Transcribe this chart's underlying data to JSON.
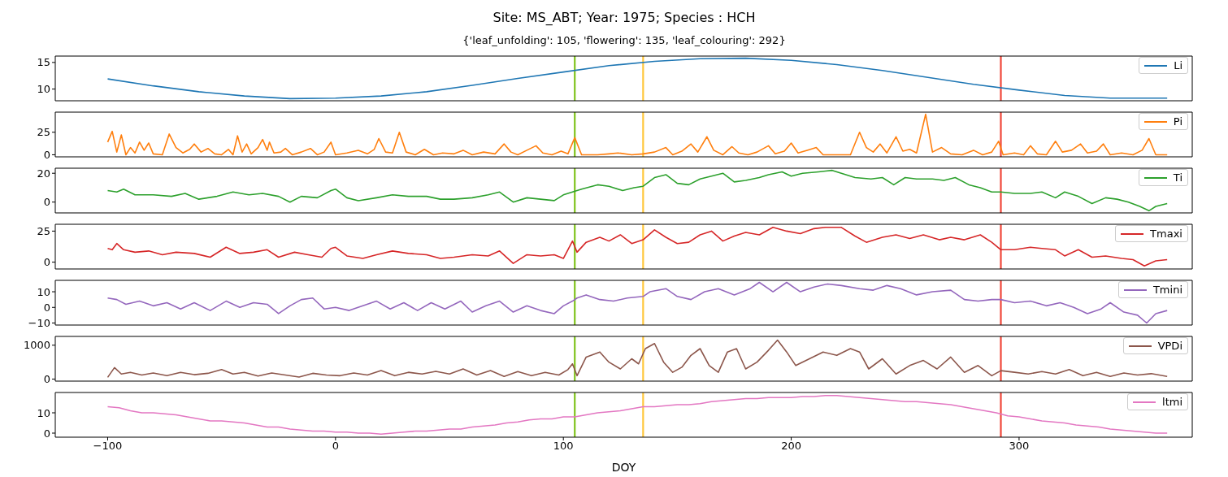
{
  "chart_data": [
    {
      "type": "line",
      "title": "Site: MS_ABT; Year: 1975; Species : HCH",
      "subtitle": "{'leaf_unfolding': 105, 'flowering': 135, 'leaf_colouring': 292}",
      "xlim": [
        -123,
        376
      ],
      "xticks": [
        -100,
        0,
        100,
        200,
        300
      ],
      "ylim": [
        7.8,
        16.2
      ],
      "yticks": [
        10,
        15
      ],
      "tick_labels": "y",
      "legend": "top right",
      "marker": "none",
      "line_style": "solid",
      "x": [
        -100,
        -80,
        -60,
        -40,
        -20,
        0,
        20,
        40,
        60,
        80,
        100,
        120,
        140,
        160,
        180,
        200,
        220,
        240,
        260,
        280,
        300,
        320,
        340,
        365
      ],
      "series": [
        {
          "name": "Li",
          "color": "#1f77b4",
          "values": [
            11.9,
            10.6,
            9.5,
            8.7,
            8.2,
            8.3,
            8.7,
            9.5,
            10.7,
            12.0,
            13.2,
            14.4,
            15.2,
            15.7,
            15.8,
            15.4,
            14.6,
            13.5,
            12.2,
            10.9,
            9.8,
            8.8,
            8.3,
            8.3
          ]
        }
      ],
      "ref_lines": [
        {
          "axis": "x",
          "value": 105,
          "color": "#7fc31c"
        },
        {
          "axis": "x",
          "value": 135,
          "color": "#ffc83d"
        },
        {
          "axis": "x",
          "value": 292,
          "color": "#f0473a"
        }
      ]
    },
    {
      "type": "line",
      "xlim": [
        -123,
        376
      ],
      "xticks": [
        -100,
        0,
        100,
        200,
        300
      ],
      "ylim": [
        -2.3,
        47.3
      ],
      "yticks": [
        0,
        25
      ],
      "tick_labels": "y",
      "legend": "top right",
      "marker": "none",
      "line_style": "solid",
      "x": [
        -100,
        -98,
        -96,
        -94,
        -92,
        -90,
        -88,
        -86,
        -84,
        -82,
        -80,
        -76,
        -73,
        -70,
        -67,
        -64,
        -62,
        -59,
        -56,
        -53,
        -50,
        -47,
        -45,
        -43,
        -41,
        -39,
        -37,
        -34,
        -32,
        -30,
        -29,
        -27,
        -24,
        -22,
        -19,
        -15,
        -11,
        -8,
        -5,
        -2,
        0,
        5,
        10,
        14,
        17,
        19,
        22,
        25,
        28,
        31,
        35,
        39,
        43,
        47,
        52,
        56,
        60,
        65,
        70,
        74,
        77,
        80,
        84,
        88,
        91,
        95,
        99,
        102,
        105,
        108,
        115,
        120,
        124,
        130,
        135,
        140,
        145,
        148,
        152,
        156,
        159,
        163,
        166,
        170,
        174,
        177,
        181,
        185,
        190,
        193,
        197,
        200,
        203,
        207,
        211,
        214,
        218,
        222,
        226,
        230,
        233,
        236,
        239,
        242,
        246,
        249,
        252,
        255,
        259,
        262,
        266,
        270,
        275,
        280,
        284,
        288,
        291,
        293,
        298,
        302,
        305,
        308,
        312,
        316,
        319,
        323,
        327,
        330,
        334,
        337,
        340,
        345,
        350,
        354,
        357,
        360,
        365
      ],
      "series": [
        {
          "name": "Pi",
          "color": "#ff7f0e",
          "values": [
            14,
            26,
            3,
            22,
            0,
            8,
            2,
            14,
            5,
            13,
            1,
            0,
            23,
            8,
            2,
            6,
            12,
            3,
            7,
            1,
            0,
            6,
            0,
            21,
            3,
            12,
            1,
            8,
            17,
            5,
            14,
            2,
            3,
            7,
            0,
            3,
            7,
            0,
            3,
            14,
            0,
            2,
            5,
            1,
            6,
            18,
            3,
            2,
            25,
            3,
            0,
            6,
            0,
            2,
            1,
            5,
            0,
            3,
            1,
            12,
            3,
            0,
            5,
            10,
            2,
            0,
            4,
            1,
            19,
            0,
            0,
            1,
            2,
            0,
            1,
            3,
            8,
            0,
            4,
            12,
            3,
            20,
            5,
            0,
            9,
            2,
            0,
            3,
            10,
            1,
            4,
            13,
            2,
            5,
            8,
            0,
            0,
            0,
            0,
            25,
            8,
            3,
            12,
            2,
            20,
            4,
            6,
            2,
            45,
            3,
            8,
            1,
            0,
            5,
            0,
            3,
            15,
            0,
            2,
            0,
            10,
            1,
            0,
            15,
            3,
            5,
            12,
            2,
            4,
            12,
            0,
            2,
            0,
            5,
            18,
            0,
            0
          ]
        }
      ],
      "ref_lines": [
        {
          "axis": "x",
          "value": 105,
          "color": "#7fc31c"
        },
        {
          "axis": "x",
          "value": 135,
          "color": "#ffc83d"
        },
        {
          "axis": "x",
          "value": 292,
          "color": "#f0473a"
        }
      ]
    },
    {
      "type": "line",
      "xlim": [
        -123,
        376
      ],
      "xticks": [
        -100,
        0,
        100,
        200,
        300
      ],
      "ylim": [
        -7.5,
        23.5
      ],
      "yticks": [
        0,
        20
      ],
      "tick_labels": "y",
      "legend": "top right",
      "marker": "none",
      "line_style": "solid",
      "x": [
        -100,
        -96,
        -93,
        -88,
        -80,
        -72,
        -66,
        -60,
        -52,
        -45,
        -38,
        -32,
        -25,
        -20,
        -15,
        -8,
        -2,
        0,
        5,
        10,
        18,
        25,
        32,
        40,
        46,
        52,
        60,
        67,
        72,
        78,
        84,
        90,
        96,
        100,
        104,
        108,
        115,
        120,
        126,
        131,
        135,
        140,
        145,
        150,
        155,
        160,
        165,
        170,
        175,
        180,
        186,
        190,
        196,
        200,
        205,
        212,
        218,
        222,
        228,
        235,
        240,
        245,
        250,
        255,
        262,
        267,
        272,
        278,
        283,
        288,
        292,
        298,
        305,
        310,
        316,
        320,
        326,
        332,
        338,
        343,
        348,
        353,
        357,
        360,
        365
      ],
      "series": [
        {
          "name": "Ti",
          "color": "#2ca02c",
          "values": [
            8,
            7,
            9,
            5,
            5,
            4,
            6,
            2,
            4,
            7,
            5,
            6,
            4,
            0,
            4,
            3,
            8,
            9,
            3,
            1,
            3,
            5,
            4,
            4,
            2,
            2,
            3,
            5,
            7,
            0,
            3,
            2,
            1,
            5,
            7,
            9,
            12,
            11,
            8,
            10,
            11,
            17,
            19,
            13,
            12,
            16,
            18,
            20,
            14,
            15,
            17,
            19,
            21,
            18,
            20,
            21,
            22,
            20,
            17,
            16,
            17,
            12,
            17,
            16,
            16,
            15,
            17,
            12,
            10,
            7,
            7,
            6,
            6,
            7,
            3,
            7,
            4,
            -1,
            3,
            2,
            0,
            -3,
            -6,
            -3,
            -1
          ]
        }
      ],
      "ref_lines": [
        {
          "axis": "x",
          "value": 105,
          "color": "#7fc31c"
        },
        {
          "axis": "x",
          "value": 135,
          "color": "#ffc83d"
        },
        {
          "axis": "x",
          "value": 292,
          "color": "#f0473a"
        }
      ]
    },
    {
      "type": "line",
      "xlim": [
        -123,
        376
      ],
      "xticks": [
        -100,
        0,
        100,
        200,
        300
      ],
      "ylim": [
        -5.5,
        30.5
      ],
      "yticks": [
        0,
        25
      ],
      "tick_labels": "y",
      "legend": "top right",
      "marker": "none",
      "line_style": "solid",
      "x": [
        -100,
        -98,
        -96,
        -93,
        -88,
        -82,
        -76,
        -70,
        -62,
        -55,
        -48,
        -42,
        -36,
        -30,
        -25,
        -18,
        -12,
        -6,
        -2,
        0,
        5,
        12,
        18,
        25,
        32,
        40,
        46,
        52,
        60,
        67,
        72,
        78,
        84,
        90,
        96,
        100,
        104,
        106,
        110,
        116,
        120,
        125,
        130,
        135,
        140,
        145,
        150,
        155,
        160,
        165,
        170,
        175,
        180,
        186,
        192,
        198,
        204,
        210,
        215,
        222,
        228,
        233,
        240,
        246,
        252,
        258,
        265,
        270,
        276,
        283,
        288,
        292,
        298,
        305,
        310,
        316,
        320,
        326,
        332,
        338,
        345,
        350,
        355,
        360,
        365
      ],
      "series": [
        {
          "name": "Tmaxi",
          "color": "#d62728",
          "values": [
            11,
            10,
            15,
            10,
            8,
            9,
            6,
            8,
            7,
            4,
            12,
            7,
            8,
            10,
            4,
            8,
            6,
            4,
            11,
            12,
            5,
            3,
            6,
            9,
            7,
            6,
            3,
            4,
            6,
            5,
            9,
            -1,
            6,
            5,
            6,
            3,
            17,
            8,
            16,
            20,
            17,
            22,
            15,
            18,
            26,
            20,
            15,
            16,
            22,
            25,
            17,
            21,
            24,
            22,
            28,
            25,
            23,
            27,
            28,
            28,
            21,
            16,
            20,
            22,
            19,
            22,
            18,
            20,
            18,
            22,
            16,
            10,
            10,
            12,
            11,
            10,
            5,
            10,
            4,
            5,
            3,
            2,
            -3,
            1,
            2
          ]
        }
      ],
      "ref_lines": [
        {
          "axis": "x",
          "value": 105,
          "color": "#7fc31c"
        },
        {
          "axis": "x",
          "value": 135,
          "color": "#ffc83d"
        },
        {
          "axis": "x",
          "value": 292,
          "color": "#f0473a"
        }
      ]
    },
    {
      "type": "line",
      "xlim": [
        -123,
        376
      ],
      "xticks": [
        -100,
        0,
        100,
        200,
        300
      ],
      "ylim": [
        -11.3,
        17.3
      ],
      "yticks": [
        -10,
        0,
        10
      ],
      "tick_labels": "y",
      "legend": "top right",
      "marker": "none",
      "line_style": "solid",
      "x": [
        -100,
        -96,
        -92,
        -86,
        -80,
        -74,
        -68,
        -62,
        -55,
        -48,
        -42,
        -36,
        -30,
        -25,
        -20,
        -15,
        -10,
        -5,
        0,
        6,
        12,
        18,
        24,
        30,
        36,
        42,
        48,
        55,
        60,
        66,
        72,
        78,
        84,
        90,
        96,
        100,
        104,
        106,
        110,
        116,
        122,
        128,
        135,
        138,
        145,
        150,
        156,
        162,
        168,
        175,
        182,
        186,
        192,
        198,
        204,
        210,
        216,
        222,
        230,
        236,
        242,
        248,
        255,
        262,
        270,
        276,
        282,
        288,
        292,
        298,
        305,
        312,
        318,
        324,
        330,
        336,
        340,
        346,
        352,
        356,
        360,
        365
      ],
      "series": [
        {
          "name": "Tmini",
          "color": "#9467bd",
          "values": [
            6,
            5,
            2,
            4,
            1,
            3,
            -1,
            3,
            -2,
            4,
            0,
            3,
            2,
            -4,
            1,
            5,
            6,
            -1,
            0,
            -2,
            1,
            4,
            -1,
            3,
            -2,
            3,
            -1,
            4,
            -3,
            1,
            4,
            -3,
            1,
            -2,
            -4,
            1,
            4,
            6,
            8,
            5,
            4,
            6,
            7,
            10,
            12,
            7,
            5,
            10,
            12,
            8,
            12,
            16,
            10,
            16,
            10,
            13,
            15,
            14,
            12,
            11,
            14,
            12,
            8,
            10,
            11,
            5,
            4,
            5,
            5,
            3,
            4,
            1,
            3,
            0,
            -4,
            -1,
            3,
            -3,
            -5,
            -10,
            -4,
            -2
          ]
        }
      ],
      "ref_lines": [
        {
          "axis": "x",
          "value": 105,
          "color": "#7fc31c"
        },
        {
          "axis": "x",
          "value": 135,
          "color": "#ffc83d"
        },
        {
          "axis": "x",
          "value": 292,
          "color": "#f0473a"
        }
      ]
    },
    {
      "type": "line",
      "xlim": [
        -123,
        376
      ],
      "xticks": [
        -100,
        0,
        100,
        200,
        300
      ],
      "ylim": [
        -60,
        1260
      ],
      "yticks": [
        0,
        1000
      ],
      "tick_labels": "y",
      "legend": "top right",
      "marker": "none",
      "line_style": "solid",
      "x": [
        -100,
        -97,
        -94,
        -90,
        -85,
        -80,
        -74,
        -68,
        -62,
        -56,
        -50,
        -45,
        -40,
        -34,
        -28,
        -22,
        -16,
        -10,
        -4,
        2,
        8,
        14,
        20,
        26,
        32,
        38,
        44,
        50,
        56,
        62,
        68,
        74,
        80,
        86,
        92,
        98,
        102,
        104,
        106,
        110,
        116,
        120,
        125,
        130,
        133,
        136,
        140,
        144,
        148,
        152,
        156,
        160,
        164,
        168,
        172,
        176,
        180,
        185,
        190,
        194,
        198,
        202,
        208,
        214,
        220,
        226,
        230,
        234,
        240,
        246,
        252,
        258,
        264,
        270,
        276,
        282,
        288,
        292,
        298,
        304,
        310,
        316,
        322,
        328,
        334,
        340,
        346,
        352,
        358,
        365
      ],
      "series": [
        {
          "name": "VPDi",
          "color": "#8c564b",
          "values": [
            50,
            340,
            150,
            200,
            120,
            180,
            100,
            200,
            130,
            170,
            280,
            150,
            200,
            90,
            180,
            120,
            60,
            170,
            120,
            100,
            180,
            120,
            250,
            100,
            200,
            150,
            230,
            150,
            300,
            120,
            250,
            80,
            220,
            100,
            200,
            120,
            280,
            450,
            100,
            650,
            800,
            500,
            300,
            600,
            450,
            900,
            1050,
            500,
            200,
            350,
            700,
            900,
            400,
            200,
            800,
            900,
            300,
            500,
            850,
            1150,
            800,
            400,
            600,
            800,
            700,
            900,
            800,
            300,
            600,
            150,
            400,
            550,
            300,
            650,
            200,
            400,
            100,
            250,
            200,
            150,
            220,
            150,
            280,
            100,
            200,
            80,
            180,
            120,
            160,
            80
          ]
        }
      ],
      "ref_lines": [
        {
          "axis": "x",
          "value": 105,
          "color": "#7fc31c"
        },
        {
          "axis": "x",
          "value": 135,
          "color": "#ffc83d"
        },
        {
          "axis": "x",
          "value": 292,
          "color": "#f0473a"
        }
      ]
    },
    {
      "type": "line",
      "xlabel": "DOY",
      "xlim": [
        -123,
        376
      ],
      "xticks": [
        -100,
        0,
        100,
        200,
        300
      ],
      "ylim": [
        -2,
        20
      ],
      "yticks": [
        0,
        10
      ],
      "legend": "top right",
      "marker": "none",
      "line_style": "solid",
      "x": [
        -100,
        -95,
        -90,
        -85,
        -80,
        -75,
        -70,
        -65,
        -60,
        -55,
        -50,
        -45,
        -40,
        -35,
        -30,
        -25,
        -20,
        -15,
        -10,
        -5,
        0,
        5,
        10,
        15,
        20,
        25,
        30,
        35,
        40,
        45,
        50,
        55,
        60,
        65,
        70,
        75,
        80,
        85,
        90,
        95,
        100,
        105,
        110,
        115,
        120,
        125,
        130,
        135,
        140,
        145,
        150,
        155,
        160,
        165,
        170,
        175,
        180,
        185,
        190,
        195,
        200,
        205,
        210,
        215,
        220,
        225,
        230,
        235,
        240,
        245,
        250,
        255,
        260,
        265,
        270,
        275,
        280,
        285,
        290,
        295,
        300,
        305,
        310,
        315,
        320,
        325,
        330,
        335,
        340,
        345,
        350,
        355,
        360,
        365
      ],
      "series": [
        {
          "name": "ltmi",
          "color": "#e377c2",
          "values": [
            13,
            12.5,
            11,
            10,
            10,
            9.5,
            9,
            8,
            7,
            6,
            6,
            5.5,
            5,
            4,
            3,
            3,
            2,
            1.5,
            1,
            1,
            0.5,
            0.5,
            0,
            0,
            -0.5,
            0,
            0.5,
            1,
            1,
            1.5,
            2,
            2,
            3,
            3.5,
            4,
            5,
            5.5,
            6.5,
            7,
            7,
            8,
            8,
            9,
            10,
            10.5,
            11,
            12,
            13,
            13,
            13.5,
            14,
            14,
            14.5,
            15.5,
            16,
            16.5,
            17,
            17,
            17.5,
            17.5,
            17.5,
            18,
            18,
            18.5,
            18.5,
            18,
            17.5,
            17,
            16.5,
            16,
            15.5,
            15.5,
            15,
            14.5,
            14,
            13,
            12,
            11,
            10,
            8.5,
            8,
            7,
            6,
            5.5,
            5,
            4,
            3.5,
            3,
            2,
            1.5,
            1,
            0.5,
            0,
            0
          ]
        }
      ],
      "ref_lines": [
        {
          "axis": "x",
          "value": 105,
          "color": "#7fc31c"
        },
        {
          "axis": "x",
          "value": 135,
          "color": "#ffc83d"
        },
        {
          "axis": "x",
          "value": 292,
          "color": "#f0473a"
        }
      ]
    }
  ]
}
